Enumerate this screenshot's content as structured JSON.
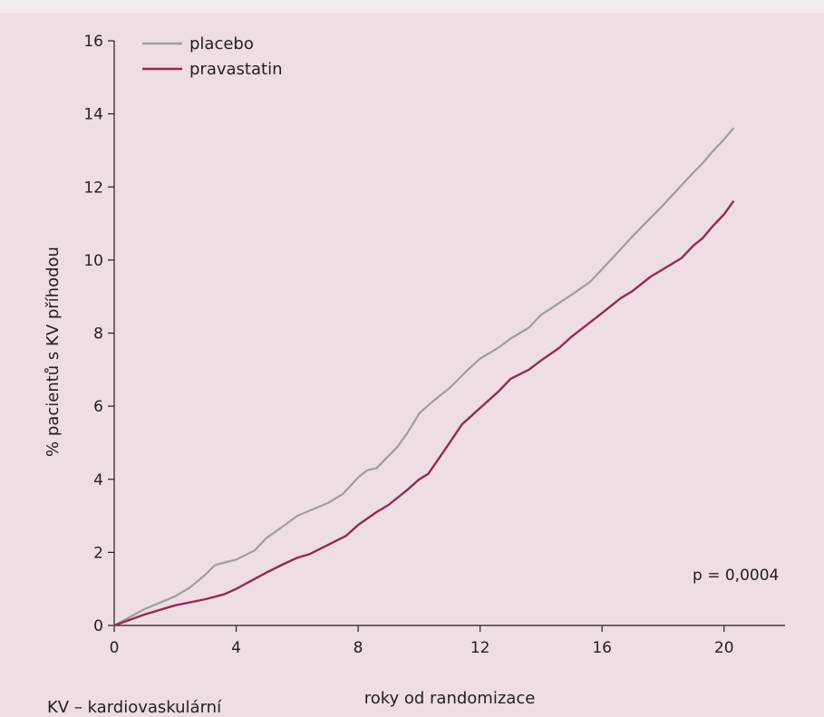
{
  "chart_data": {
    "type": "line",
    "title": "",
    "xlabel": "roky od randomizace",
    "ylabel": "% pacientů s KV příhodou",
    "xlim": [
      0,
      22
    ],
    "ylim": [
      0,
      16
    ],
    "x_ticks": [
      0,
      4,
      8,
      12,
      16,
      20
    ],
    "y_ticks": [
      0,
      2,
      4,
      6,
      8,
      10,
      12,
      14,
      16
    ],
    "x_tick_labels": [
      "0",
      "4",
      "8",
      "12",
      "16",
      "20"
    ],
    "y_tick_labels": [
      "0",
      "2",
      "4",
      "6",
      "8",
      "10",
      "12",
      "14",
      "16"
    ],
    "grid": false,
    "legend_position": "top-left",
    "series": [
      {
        "name": "placebo",
        "color": "#9e9e9e",
        "points": [
          [
            0,
            0
          ],
          [
            1,
            0.45
          ],
          [
            2,
            0.8
          ],
          [
            2.5,
            1.05
          ],
          [
            3,
            1.4
          ],
          [
            3.3,
            1.65
          ],
          [
            3.6,
            1.72
          ],
          [
            4,
            1.8
          ],
          [
            4.6,
            2.05
          ],
          [
            5,
            2.4
          ],
          [
            5.6,
            2.75
          ],
          [
            6,
            3.0
          ],
          [
            7,
            3.35
          ],
          [
            7.5,
            3.6
          ],
          [
            8,
            4.05
          ],
          [
            8.3,
            4.25
          ],
          [
            8.6,
            4.3
          ],
          [
            9.3,
            4.9
          ],
          [
            9.6,
            5.25
          ],
          [
            10,
            5.8
          ],
          [
            10.4,
            6.1
          ],
          [
            11,
            6.5
          ],
          [
            11.6,
            7.0
          ],
          [
            12,
            7.3
          ],
          [
            12.6,
            7.6
          ],
          [
            13,
            7.85
          ],
          [
            13.6,
            8.15
          ],
          [
            14,
            8.5
          ],
          [
            15,
            9.05
          ],
          [
            15.6,
            9.4
          ],
          [
            16,
            9.75
          ],
          [
            17,
            10.65
          ],
          [
            18,
            11.5
          ],
          [
            19,
            12.4
          ],
          [
            19.3,
            12.65
          ],
          [
            19.6,
            12.95
          ],
          [
            20,
            13.3
          ],
          [
            20.3,
            13.6
          ]
        ],
        "legend_label": "placebo"
      },
      {
        "name": "pravastatin",
        "color": "#8e2c5a",
        "points": [
          [
            0,
            0
          ],
          [
            1,
            0.3
          ],
          [
            2,
            0.55
          ],
          [
            3,
            0.72
          ],
          [
            3.6,
            0.85
          ],
          [
            4,
            1.0
          ],
          [
            5,
            1.45
          ],
          [
            5.6,
            1.7
          ],
          [
            6,
            1.85
          ],
          [
            6.4,
            1.95
          ],
          [
            7,
            2.2
          ],
          [
            7.6,
            2.45
          ],
          [
            8,
            2.75
          ],
          [
            8.6,
            3.1
          ],
          [
            9,
            3.3
          ],
          [
            9.6,
            3.7
          ],
          [
            10,
            4.0
          ],
          [
            10.3,
            4.15
          ],
          [
            11,
            5.0
          ],
          [
            11.4,
            5.5
          ],
          [
            12,
            5.95
          ],
          [
            12.6,
            6.4
          ],
          [
            13,
            6.75
          ],
          [
            13.6,
            7.0
          ],
          [
            14,
            7.25
          ],
          [
            14.6,
            7.6
          ],
          [
            15,
            7.9
          ],
          [
            16,
            8.55
          ],
          [
            16.6,
            8.95
          ],
          [
            17,
            9.15
          ],
          [
            17.6,
            9.55
          ],
          [
            18,
            9.75
          ],
          [
            18.6,
            10.05
          ],
          [
            19,
            10.4
          ],
          [
            19.3,
            10.6
          ],
          [
            19.6,
            10.9
          ],
          [
            20,
            11.25
          ],
          [
            20.3,
            11.6
          ]
        ],
        "legend_label": "pravastatin"
      }
    ],
    "annotation": "p = 0,0004"
  },
  "footnote": "KV – kardiovaskulární",
  "colors": {
    "background": "#eedde2",
    "top_strip": "#f4ecee",
    "axis": "#231f20"
  }
}
